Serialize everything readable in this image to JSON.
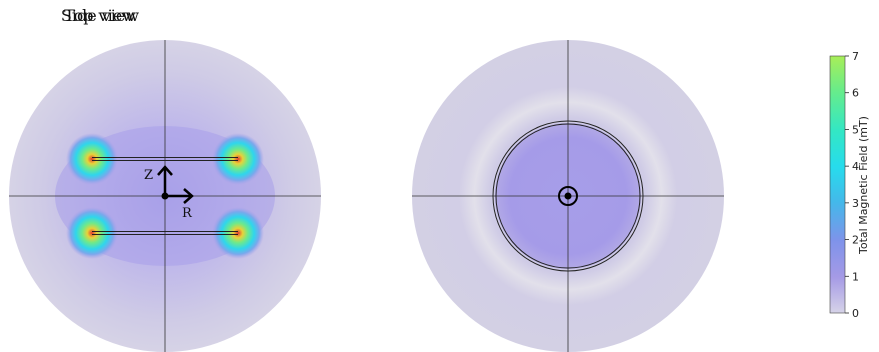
{
  "panels": {
    "side": {
      "title": "Side view",
      "axis_z": "Z",
      "axis_r": "R"
    },
    "top": {
      "title": "Top view"
    }
  },
  "colorbar": {
    "label": "Total Magnetic Field (mT)",
    "ticks": [
      "0",
      "1",
      "2",
      "3",
      "4",
      "5",
      "6",
      "7"
    ],
    "colors": [
      "#d6d3e8",
      "#a59ae6",
      "#7f93ea",
      "#44b8ea",
      "#27dcec",
      "#33e7c4",
      "#66ec8c",
      "#a8ee58"
    ]
  }
}
